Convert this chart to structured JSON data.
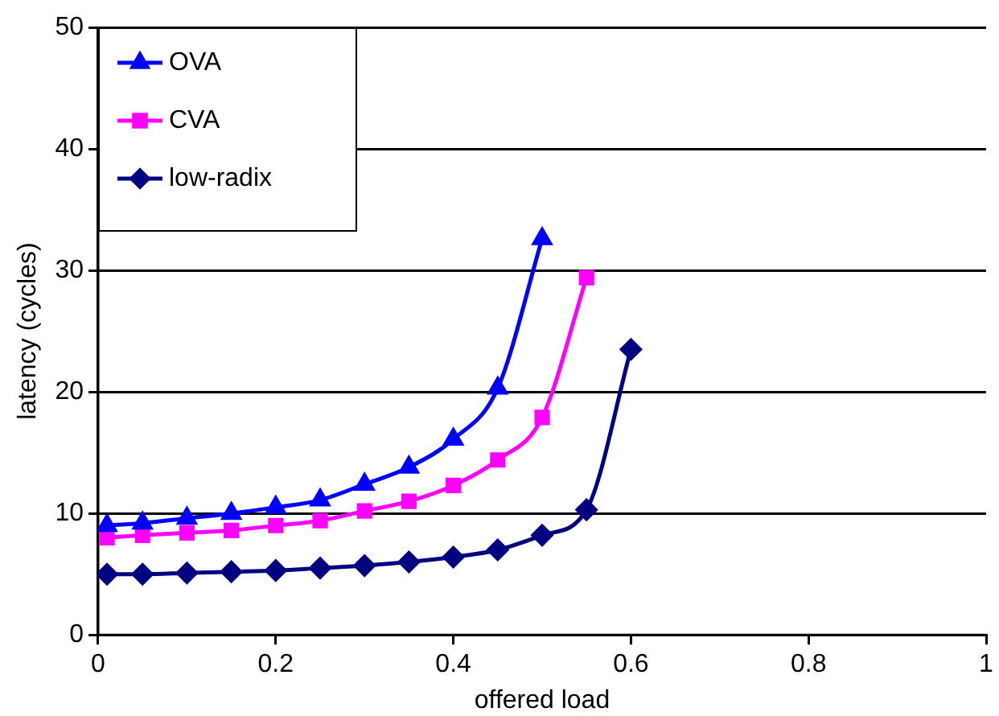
{
  "chart_data": {
    "type": "line",
    "xlabel": "offered load",
    "ylabel": "latency (cycles)",
    "xlim": [
      0,
      1
    ],
    "xticks": [
      0,
      0.2,
      0.4,
      0.6,
      0.8,
      1
    ],
    "ylim": [
      0,
      50
    ],
    "yticks": [
      0,
      10,
      20,
      30,
      40,
      50
    ],
    "grid": "y",
    "legend": "top left",
    "line_style": "solid",
    "series": [
      {
        "name": "OVA",
        "color": "#0000ff",
        "marker": "triangle",
        "x": [
          0.01,
          0.05,
          0.1,
          0.15,
          0.2,
          0.25,
          0.3,
          0.35,
          0.4,
          0.45,
          0.5
        ],
        "values": [
          9,
          9.2,
          9.6,
          10,
          10.5,
          11.1,
          12.4,
          13.8,
          16.1,
          20.3,
          32.6
        ]
      },
      {
        "name": "CVA",
        "color": "#ff00ff",
        "marker": "square",
        "x": [
          0.01,
          0.05,
          0.1,
          0.15,
          0.2,
          0.25,
          0.3,
          0.35,
          0.4,
          0.45,
          0.5,
          0.55
        ],
        "values": [
          8,
          8.2,
          8.4,
          8.6,
          9,
          9.4,
          10.2,
          11,
          12.3,
          14.4,
          17.9,
          29.4
        ]
      },
      {
        "name": "low-radix",
        "color": "#000080",
        "marker": "diamond",
        "x": [
          0.01,
          0.05,
          0.1,
          0.15,
          0.2,
          0.25,
          0.3,
          0.35,
          0.4,
          0.45,
          0.5,
          0.55,
          0.6
        ],
        "values": [
          5,
          5,
          5.1,
          5.2,
          5.3,
          5.5,
          5.7,
          6,
          6.4,
          7,
          8.2,
          10.3,
          23.5
        ]
      }
    ]
  }
}
